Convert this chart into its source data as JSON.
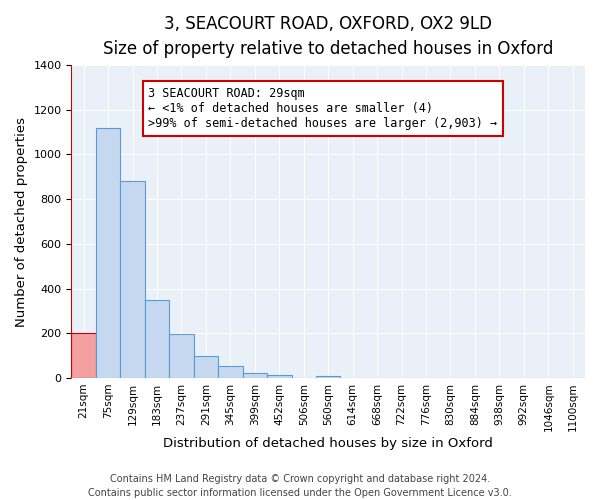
{
  "title": "3, SEACOURT ROAD, OXFORD, OX2 9LD",
  "subtitle": "Size of property relative to detached houses in Oxford",
  "xlabel": "Distribution of detached houses by size in Oxford",
  "ylabel": "Number of detached properties",
  "bar_labels": [
    "21sqm",
    "75sqm",
    "129sqm",
    "183sqm",
    "237sqm",
    "291sqm",
    "345sqm",
    "399sqm",
    "452sqm",
    "506sqm",
    "560sqm",
    "614sqm",
    "668sqm",
    "722sqm",
    "776sqm",
    "830sqm",
    "884sqm",
    "938sqm",
    "992sqm",
    "1046sqm",
    "1100sqm"
  ],
  "bar_heights": [
    200,
    1120,
    880,
    350,
    195,
    100,
    55,
    22,
    12,
    0,
    8,
    0,
    0,
    0,
    0,
    0,
    0,
    0,
    0,
    0,
    0
  ],
  "bar_color": "#c5d8f0",
  "bar_edge_color": "#5b9bd5",
  "highlight_bar_index": 0,
  "highlight_color": "#f4a0a0",
  "highlight_edge_color": "#cc0000",
  "vline_color": "#cc0000",
  "annotation_text": "3 SEACOURT ROAD: 29sqm\n← <1% of detached houses are smaller (4)\n>99% of semi-detached houses are larger (2,903) →",
  "annotation_box_color": "#ffffff",
  "annotation_box_edge_color": "#cc0000",
  "ylim": [
    0,
    1400
  ],
  "footnote1": "Contains HM Land Registry data © Crown copyright and database right 2024.",
  "footnote2": "Contains public sector information licensed under the Open Government Licence v3.0.",
  "title_fontsize": 12,
  "axis_label_fontsize": 9.5,
  "tick_fontsize": 7.5,
  "annotation_fontsize": 8.5,
  "footnote_fontsize": 7
}
